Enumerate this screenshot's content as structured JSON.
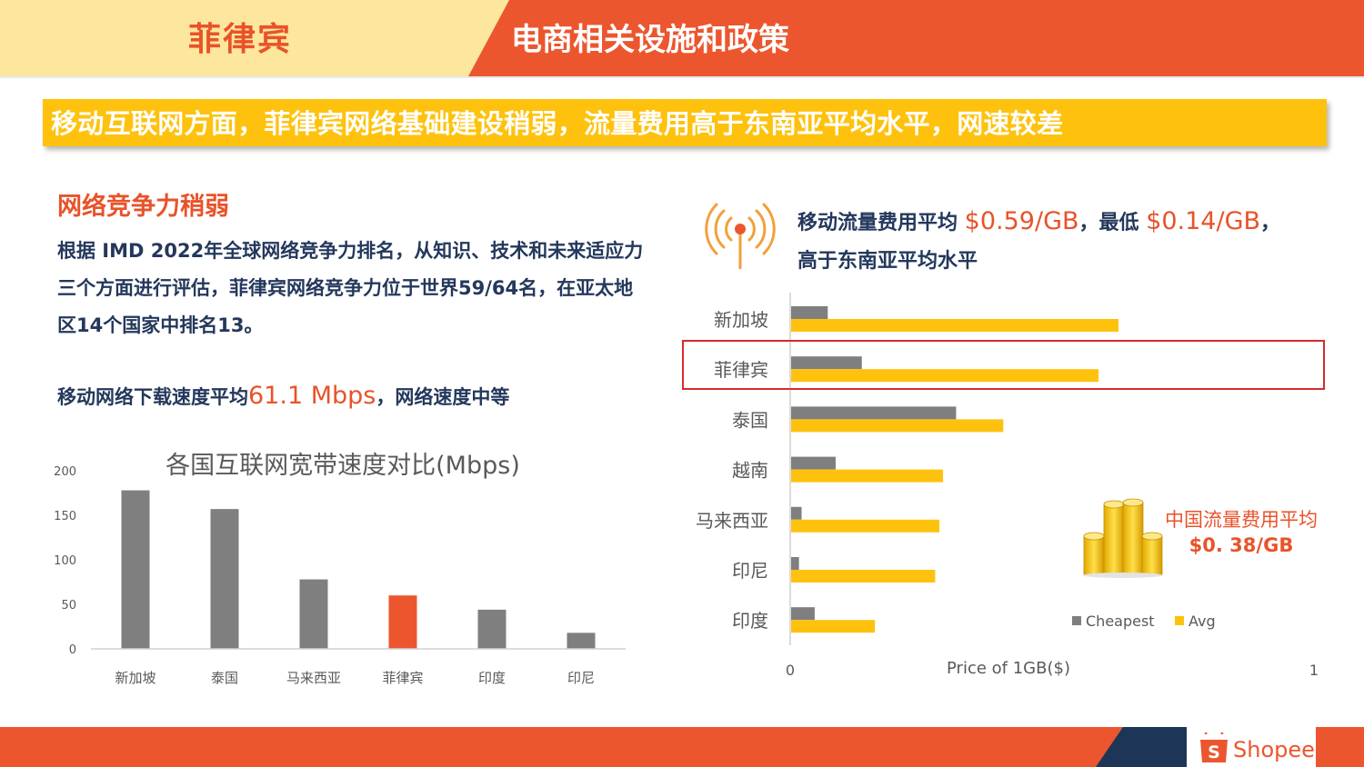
{
  "header": {
    "country": "菲律宾",
    "title": "电商相关设施和政策"
  },
  "banner": "移动互联网方面，菲律宾网络基础建设稍弱，流量费用高于东南亚平均水平，网速较差",
  "left": {
    "section_title": "网络竞争力稍弱",
    "paragraph": "根据 IMD 2022年全球网络竞争力排名，从知识、技术和未来适应力三个方面进行评估，菲律宾网络竞争力位于世界59/64名，在亚太地区14个国家中排名13。",
    "speed_prefix": "移动网络下载速度平均",
    "speed_value": "61.1 Mbps",
    "speed_suffix": "，网络速度中等"
  },
  "right": {
    "cost_prefix": "移动流量费用平均 ",
    "cost_avg": "$0.59/GB",
    "cost_mid": "，最低 ",
    "cost_min": "$0.14/GB",
    "cost_end": "，",
    "cost_line2": "高于东南亚平均水平",
    "china_cost_label": "中国流量费用平均",
    "china_cost_value": "$0. 38/GB"
  },
  "footer": {
    "brand": "Shopee"
  },
  "colors": {
    "orange": "#ec562e",
    "yellow": "#fec20e",
    "gray": "#7f7f7f",
    "navy": "#24385c",
    "highlight_box": "#d62b2b"
  },
  "chart_data": [
    {
      "type": "bar",
      "title": "各国互联网宽带速度对比(Mbps)",
      "categories": [
        "新加坡",
        "泰国",
        "马来西亚",
        "菲律宾",
        "印度",
        "印尼"
      ],
      "values": [
        178,
        157,
        78,
        60,
        44,
        18
      ],
      "highlight": "菲律宾",
      "highlight_color": "#ec562e",
      "ylim": [
        0,
        200
      ],
      "yticks": [
        0,
        50,
        100,
        150,
        200
      ],
      "grid": false
    },
    {
      "type": "bar",
      "orientation": "horizontal",
      "categories": [
        "新加坡",
        "菲律宾",
        "泰国",
        "越南",
        "马来西亚",
        "印尼",
        "印度"
      ],
      "series": [
        {
          "name": "Cheapest",
          "color": "#7f7f7f",
          "values": [
            0.07,
            0.135,
            0.315,
            0.085,
            0.02,
            0.015,
            0.045
          ]
        },
        {
          "name": "Avg",
          "color": "#fec20e",
          "values": [
            0.625,
            0.587,
            0.405,
            0.29,
            0.283,
            0.275,
            0.16
          ]
        }
      ],
      "xlabel": "Price of 1GB($)",
      "xlim": [
        0,
        1
      ],
      "xticks": [
        0,
        1
      ],
      "highlight": "菲律宾",
      "legend": "bottom-right",
      "grid": false
    }
  ]
}
